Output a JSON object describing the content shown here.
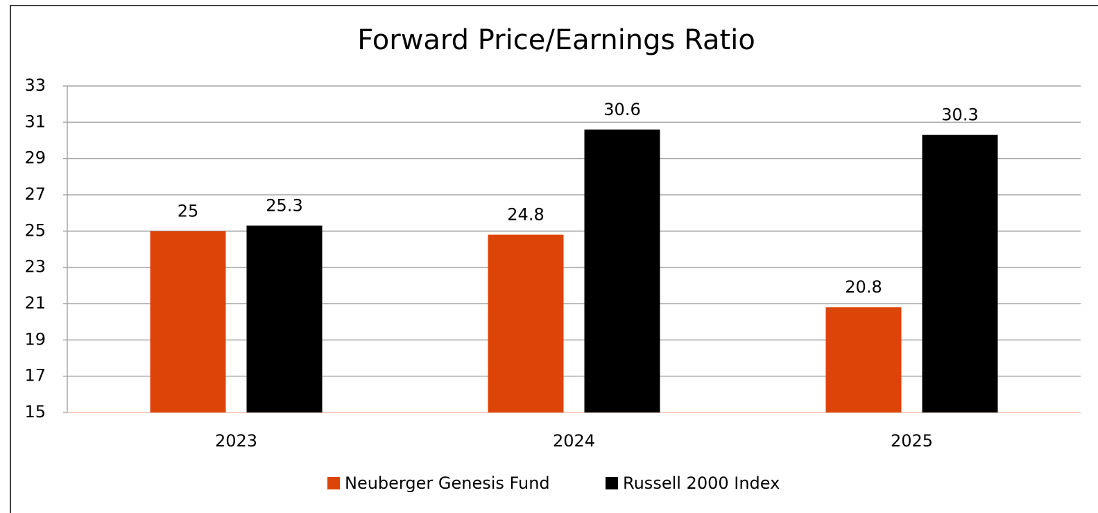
{
  "chart_data": {
    "type": "bar",
    "title": "Forward Price/Earnings Ratio",
    "categories": [
      "2023",
      "2024",
      "2025"
    ],
    "series": [
      {
        "name": "Neuberger Genesis Fund",
        "color": "#dd4408",
        "values": [
          25,
          24.8,
          20.8
        ]
      },
      {
        "name": "Russell 2000 Index",
        "color": "#000000",
        "values": [
          25.3,
          30.6,
          30.3
        ]
      }
    ],
    "ylim": [
      15,
      33
    ],
    "yticks": [
      15,
      17,
      19,
      21,
      23,
      25,
      27,
      29,
      31,
      33
    ],
    "grid": true,
    "legend": "bottom"
  }
}
